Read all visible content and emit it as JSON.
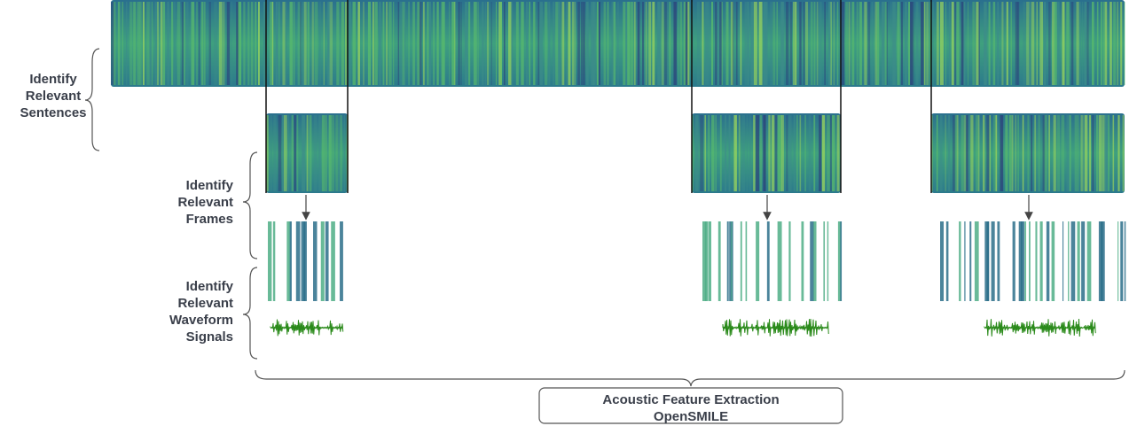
{
  "labels": {
    "sentences": [
      "Identify",
      "Relevant",
      "Sentences"
    ],
    "frames": [
      "Identify",
      "Relevant",
      "Frames"
    ],
    "waveform": [
      "Identify",
      "Relevant",
      "Waveform",
      "Signals"
    ]
  },
  "box": {
    "lines": [
      "Acoustic Feature Extraction",
      "OpenSMILE"
    ]
  }
}
